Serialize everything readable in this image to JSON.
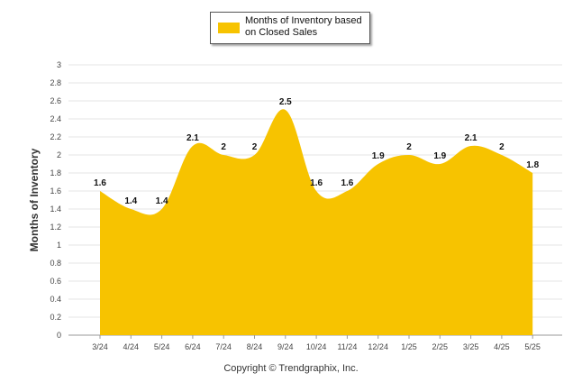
{
  "chart_data": {
    "type": "area",
    "title": "",
    "xlabel": "",
    "ylabel": "Months of Inventory",
    "ylim": [
      0,
      3
    ],
    "yticks": [
      "0",
      "0.2",
      "0.4",
      "0.6",
      "0.8",
      "1",
      "1.2",
      "1.4",
      "1.6",
      "1.8",
      "2",
      "2.2",
      "2.4",
      "2.6",
      "2.8",
      "3"
    ],
    "categories": [
      "3/24",
      "4/24",
      "5/24",
      "6/24",
      "7/24",
      "8/24",
      "9/24",
      "10/24",
      "11/24",
      "12/24",
      "1/25",
      "2/25",
      "3/25",
      "4/25",
      "5/25"
    ],
    "series": [
      {
        "name": "Months of Inventory based on Closed Sales",
        "values": [
          1.6,
          1.4,
          1.4,
          2.1,
          2,
          2,
          2.5,
          1.6,
          1.6,
          1.9,
          2,
          1.9,
          2.1,
          2,
          1.8
        ],
        "labels": [
          "1.6",
          "1.4",
          "1.4",
          "2.1",
          "2",
          "2",
          "2.5",
          "1.6",
          "1.6",
          "1.9",
          "2",
          "1.9",
          "2.1",
          "2",
          "1.8"
        ],
        "color": "#F7C300"
      }
    ],
    "grid": true,
    "legend": "top-center"
  },
  "legend": {
    "label": "Months of Inventory based on Closed Sales"
  },
  "footer": {
    "copyright": "Copyright © Trendgraphix, Inc."
  },
  "colors": {
    "area": "#F7C300",
    "grid": "#e6e6e6"
  }
}
